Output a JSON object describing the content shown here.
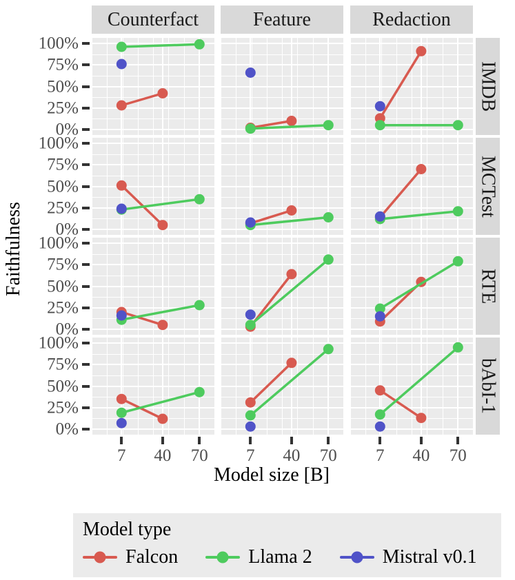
{
  "title": "Faceted faithfulness line chart",
  "axes": {
    "xlabel": "Model size [B]",
    "ylabel": "Faithfulness",
    "x_tick_labels": [
      "7",
      "40",
      "70"
    ],
    "y_tick_labels": [
      "100%",
      "75%",
      "50%",
      "25%",
      "0%"
    ]
  },
  "legend": {
    "title": "Model type",
    "entries": [
      {
        "name": "Falcon",
        "color": "#d85a50"
      },
      {
        "name": "Llama 2",
        "color": "#4ecb5e"
      },
      {
        "name": "Mistral v0.1",
        "color": "#5053c8"
      }
    ]
  },
  "colors": {
    "panel_bg": "#ebebeb",
    "strip_bg": "#d9d9d9",
    "grid": "#ffffff",
    "tick_text": "#4d4d4d",
    "falcon": "#d85a50",
    "llama2": "#4ecb5e",
    "mistral": "#5053c8"
  },
  "chart_data": {
    "type": "line",
    "facet_columns": [
      "Counterfact",
      "Feature",
      "Redaction"
    ],
    "facet_rows": [
      "IMDB",
      "MCTest",
      "RTE",
      "bAbI-1"
    ],
    "x_ticks": [
      7,
      40,
      70
    ],
    "y_ticks_percent": [
      100,
      75,
      50,
      25,
      0
    ],
    "ylim": [
      0,
      100
    ],
    "xlabel": "Model size [B]",
    "ylabel": "Faithfulness",
    "legend_position": "bottom",
    "grid": true,
    "series_order": [
      "Falcon",
      "Llama 2",
      "Mistral v0.1"
    ],
    "panels": [
      {
        "col": "Counterfact",
        "row": "IMDB",
        "series": [
          {
            "name": "Falcon",
            "points": [
              [
                7,
                28
              ],
              [
                40,
                42
              ]
            ]
          },
          {
            "name": "Llama 2",
            "points": [
              [
                7,
                96
              ],
              [
                70,
                99
              ]
            ]
          },
          {
            "name": "Mistral v0.1",
            "points": [
              [
                7,
                76
              ]
            ]
          }
        ]
      },
      {
        "col": "Feature",
        "row": "IMDB",
        "series": [
          {
            "name": "Falcon",
            "points": [
              [
                7,
                2
              ],
              [
                40,
                10
              ]
            ]
          },
          {
            "name": "Llama 2",
            "points": [
              [
                7,
                1
              ],
              [
                70,
                5
              ]
            ]
          },
          {
            "name": "Mistral v0.1",
            "points": [
              [
                7,
                66
              ]
            ]
          }
        ]
      },
      {
        "col": "Redaction",
        "row": "IMDB",
        "series": [
          {
            "name": "Falcon",
            "points": [
              [
                7,
                13
              ],
              [
                40,
                91
              ]
            ]
          },
          {
            "name": "Llama 2",
            "points": [
              [
                7,
                5
              ],
              [
                70,
                5
              ]
            ]
          },
          {
            "name": "Mistral v0.1",
            "points": [
              [
                7,
                27
              ]
            ]
          }
        ]
      },
      {
        "col": "Counterfact",
        "row": "MCTest",
        "series": [
          {
            "name": "Falcon",
            "points": [
              [
                7,
                51
              ],
              [
                40,
                5
              ]
            ]
          },
          {
            "name": "Llama 2",
            "points": [
              [
                7,
                23
              ],
              [
                70,
                35
              ]
            ]
          },
          {
            "name": "Mistral v0.1",
            "points": [
              [
                7,
                24
              ]
            ]
          }
        ]
      },
      {
        "col": "Feature",
        "row": "MCTest",
        "series": [
          {
            "name": "Falcon",
            "points": [
              [
                7,
                7
              ],
              [
                40,
                22
              ]
            ]
          },
          {
            "name": "Llama 2",
            "points": [
              [
                7,
                5
              ],
              [
                70,
                14
              ]
            ]
          },
          {
            "name": "Mistral v0.1",
            "points": [
              [
                7,
                8
              ]
            ]
          }
        ]
      },
      {
        "col": "Redaction",
        "row": "MCTest",
        "series": [
          {
            "name": "Falcon",
            "points": [
              [
                7,
                14
              ],
              [
                40,
                70
              ]
            ]
          },
          {
            "name": "Llama 2",
            "points": [
              [
                7,
                12
              ],
              [
                70,
                21
              ]
            ]
          },
          {
            "name": "Mistral v0.1",
            "points": [
              [
                7,
                15
              ]
            ]
          }
        ]
      },
      {
        "col": "Counterfact",
        "row": "RTE",
        "series": [
          {
            "name": "Falcon",
            "points": [
              [
                7,
                20
              ],
              [
                40,
                5
              ]
            ]
          },
          {
            "name": "Llama 2",
            "points": [
              [
                7,
                11
              ],
              [
                70,
                28
              ]
            ]
          },
          {
            "name": "Mistral v0.1",
            "points": [
              [
                7,
                16
              ]
            ]
          }
        ]
      },
      {
        "col": "Feature",
        "row": "RTE",
        "series": [
          {
            "name": "Falcon",
            "points": [
              [
                7,
                3
              ],
              [
                40,
                64
              ]
            ]
          },
          {
            "name": "Llama 2",
            "points": [
              [
                7,
                5
              ],
              [
                70,
                81
              ]
            ]
          },
          {
            "name": "Mistral v0.1",
            "points": [
              [
                7,
                17
              ]
            ]
          }
        ]
      },
      {
        "col": "Redaction",
        "row": "RTE",
        "series": [
          {
            "name": "Falcon",
            "points": [
              [
                7,
                9
              ],
              [
                40,
                55
              ]
            ]
          },
          {
            "name": "Llama 2",
            "points": [
              [
                7,
                24
              ],
              [
                70,
                79
              ]
            ]
          },
          {
            "name": "Mistral v0.1",
            "points": [
              [
                7,
                15
              ]
            ]
          }
        ]
      },
      {
        "col": "Counterfact",
        "row": "bAbI-1",
        "series": [
          {
            "name": "Falcon",
            "points": [
              [
                7,
                35
              ],
              [
                40,
                12
              ]
            ]
          },
          {
            "name": "Llama 2",
            "points": [
              [
                7,
                19
              ],
              [
                70,
                43
              ]
            ]
          },
          {
            "name": "Mistral v0.1",
            "points": [
              [
                7,
                7
              ]
            ]
          }
        ]
      },
      {
        "col": "Feature",
        "row": "bAbI-1",
        "series": [
          {
            "name": "Falcon",
            "points": [
              [
                7,
                31
              ],
              [
                40,
                77
              ]
            ]
          },
          {
            "name": "Llama 2",
            "points": [
              [
                7,
                16
              ],
              [
                70,
                93
              ]
            ]
          },
          {
            "name": "Mistral v0.1",
            "points": [
              [
                7,
                3
              ]
            ]
          }
        ]
      },
      {
        "col": "Redaction",
        "row": "bAbI-1",
        "series": [
          {
            "name": "Falcon",
            "points": [
              [
                7,
                45
              ],
              [
                40,
                13
              ]
            ]
          },
          {
            "name": "Llama 2",
            "points": [
              [
                7,
                17
              ],
              [
                70,
                95
              ]
            ]
          },
          {
            "name": "Mistral v0.1",
            "points": [
              [
                7,
                3
              ]
            ]
          }
        ]
      }
    ]
  }
}
